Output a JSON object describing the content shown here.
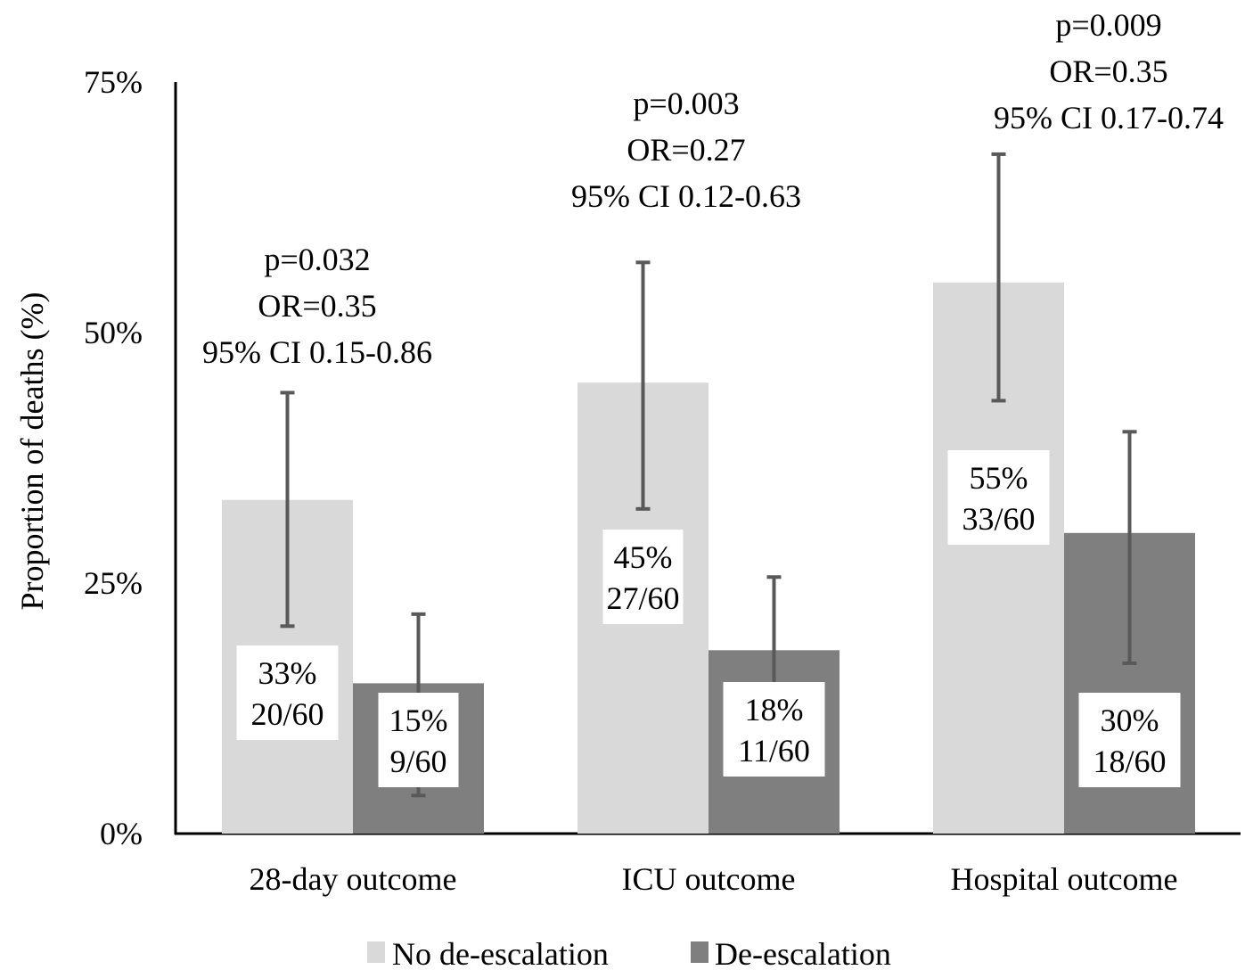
{
  "chart_data": {
    "type": "bar",
    "ylabel": "Proportion of deaths (%)",
    "xlabel": "",
    "ylim": [
      0,
      75
    ],
    "yticks": [
      0,
      25,
      50,
      75
    ],
    "ytick_labels": [
      "0%",
      "25%",
      "50%",
      "75%"
    ],
    "grid": false,
    "legend_position": "bottom",
    "categories": [
      "28-day outcome",
      "ICU outcome",
      "Hospital outcome"
    ],
    "series": [
      {
        "name": "No de-escalation",
        "color": "#d9d9d9",
        "values": [
          33.3,
          45,
          55
        ],
        "error_low": [
          20.7,
          32.4,
          43.2
        ],
        "error_high": [
          44,
          57,
          67.8
        ],
        "labels": [
          [
            "33%",
            "20/60"
          ],
          [
            "45%",
            "27/60"
          ],
          [
            "55%",
            "33/60"
          ]
        ]
      },
      {
        "name": "De-escalation",
        "color": "#7f7f7f",
        "values": [
          15,
          18.3,
          30
        ],
        "error_low": [
          3.8,
          6,
          17
        ],
        "error_high": [
          21.9,
          25.6,
          40.1
        ],
        "labels": [
          [
            "15%",
            "9/60"
          ],
          [
            "18%",
            "11/60"
          ],
          [
            "30%",
            "18/60"
          ]
        ]
      }
    ],
    "annotations": [
      [
        "p=0.032",
        "OR=0.35",
        "95% CI 0.15-0.86"
      ],
      [
        "p=0.003",
        "OR=0.27",
        "95% CI 0.12-0.63"
      ],
      [
        "p=0.009",
        "OR=0.35",
        "95% CI 0.17-0.74"
      ]
    ],
    "error_bar_color": "#595959",
    "axis_color": "#000000"
  }
}
